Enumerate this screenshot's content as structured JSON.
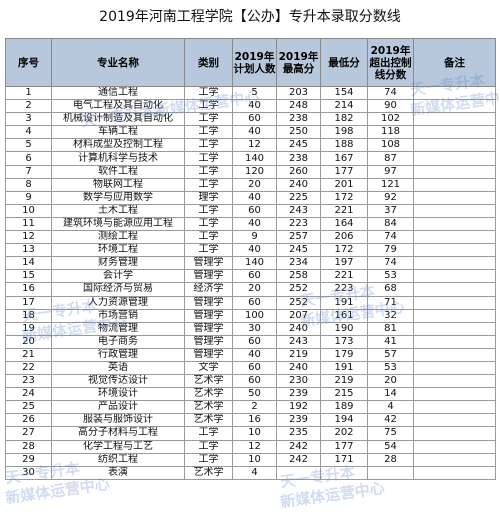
{
  "title": "2019年河南工程学院【公办】专升本录取分数线",
  "headers": [
    "序号",
    "专业名称",
    "类别",
    "2019年计划人数",
    "2019年最高分",
    "最低分",
    "2019年超出控制线分数",
    "备注"
  ],
  "rows": [
    [
      "1",
      "通信工程",
      "工学",
      "5",
      "203",
      "154",
      "74",
      ""
    ],
    [
      "2",
      "电气工程及其自动化",
      "工学",
      "40",
      "248",
      "214",
      "90",
      ""
    ],
    [
      "3",
      "机械设计制造及其自动化",
      "工学",
      "60",
      "238",
      "182",
      "102",
      ""
    ],
    [
      "4",
      "车辆工程",
      "工学",
      "40",
      "250",
      "198",
      "118",
      ""
    ],
    [
      "5",
      "材料成型及控制工程",
      "工学",
      "12",
      "245",
      "188",
      "108",
      ""
    ],
    [
      "6",
      "计算机科学与技术",
      "工学",
      "140",
      "238",
      "167",
      "87",
      ""
    ],
    [
      "7",
      "软件工程",
      "工学",
      "120",
      "260",
      "177",
      "97",
      ""
    ],
    [
      "8",
      "物联网工程",
      "工学",
      "20",
      "240",
      "201",
      "121",
      ""
    ],
    [
      "9",
      "数学与应用数学",
      "理学",
      "40",
      "225",
      "172",
      "92",
      ""
    ],
    [
      "10",
      "土木工程",
      "工学",
      "60",
      "243",
      "221",
      "37",
      ""
    ],
    [
      "11",
      "建筑环境与能源应用工程",
      "工学",
      "40",
      "223",
      "164",
      "84",
      ""
    ],
    [
      "12",
      "测绘工程",
      "工学",
      "9",
      "257",
      "206",
      "74",
      ""
    ],
    [
      "13",
      "环境工程",
      "工学",
      "40",
      "245",
      "172",
      "79",
      ""
    ],
    [
      "14",
      "财务管理",
      "管理学",
      "140",
      "234",
      "197",
      "74",
      ""
    ],
    [
      "15",
      "会计学",
      "管理学",
      "60",
      "258",
      "221",
      "53",
      ""
    ],
    [
      "16",
      "国际经济与贸易",
      "经济学",
      "20",
      "252",
      "223",
      "68",
      ""
    ],
    [
      "17",
      "人力资源管理",
      "管理学",
      "60",
      "252",
      "191",
      "71",
      ""
    ],
    [
      "18",
      "市场营销",
      "管理学",
      "100",
      "207",
      "161",
      "32",
      ""
    ],
    [
      "19",
      "物流管理",
      "管理学",
      "30",
      "240",
      "190",
      "81",
      ""
    ],
    [
      "20",
      "电子商务",
      "管理学",
      "60",
      "243",
      "173",
      "41",
      ""
    ],
    [
      "21",
      "行政管理",
      "管理学",
      "40",
      "219",
      "179",
      "57",
      ""
    ],
    [
      "22",
      "英语",
      "文学",
      "60",
      "240",
      "191",
      "53",
      ""
    ],
    [
      "23",
      "视觉传达设计",
      "艺术学",
      "60",
      "230",
      "219",
      "20",
      ""
    ],
    [
      "24",
      "环境设计",
      "艺术学",
      "50",
      "239",
      "215",
      "14",
      ""
    ],
    [
      "25",
      "产品设计",
      "艺术学",
      "2",
      "192",
      "189",
      "4",
      ""
    ],
    [
      "26",
      "服装与服饰设计",
      "艺术学",
      "16",
      "239",
      "194",
      "42",
      ""
    ],
    [
      "27",
      "高分子材料与工程",
      "工学",
      "10",
      "235",
      "202",
      "75",
      ""
    ],
    [
      "28",
      "化学工程与工艺",
      "工学",
      "12",
      "242",
      "177",
      "54",
      ""
    ],
    [
      "29",
      "纺织工程",
      "工学",
      "10",
      "242",
      "171",
      "28",
      ""
    ],
    [
      "30",
      "表演",
      "艺术学",
      "4",
      "",
      "",
      "",
      ""
    ]
  ]
}
